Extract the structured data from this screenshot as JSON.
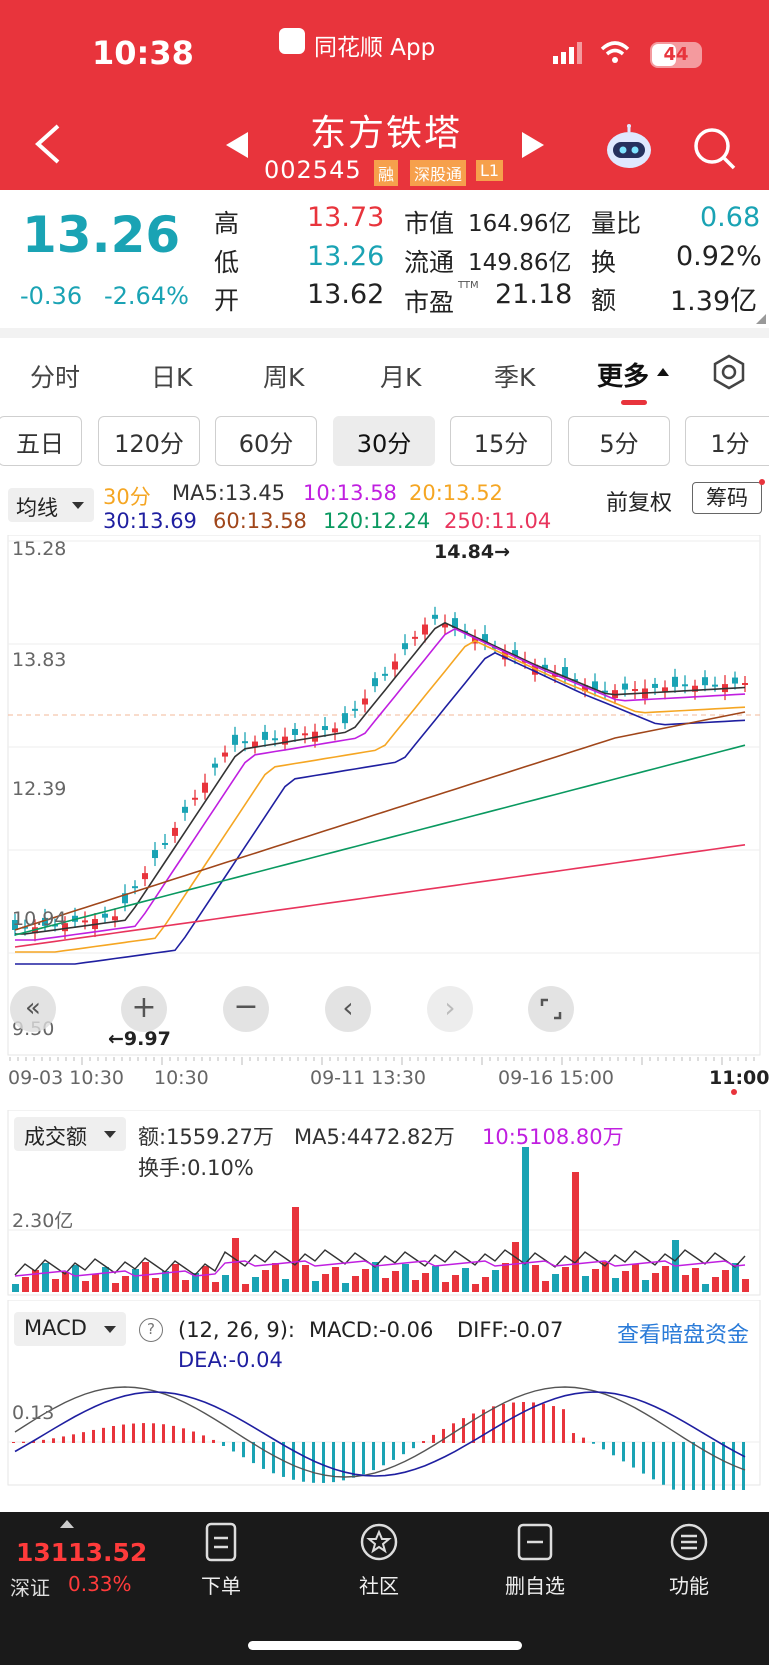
{
  "status": {
    "time": "10:38",
    "app_label": "同花顺 App",
    "battery": "44"
  },
  "header": {
    "stock_name": "东方铁塔",
    "stock_code": "002545",
    "badges": [
      "融",
      "深股通",
      "L1"
    ]
  },
  "quote": {
    "price": "13.26",
    "change": "-0.36",
    "change_pct": "-2.64%",
    "rows": [
      {
        "l1": "高",
        "v1": "13.73",
        "l2": "市值",
        "v2": "164.96亿",
        "l3": "量比",
        "v3": "0.68"
      },
      {
        "l1": "低",
        "v1": "13.26",
        "l2": "流通",
        "v2": "149.86亿",
        "l3": "换",
        "v3": "0.92%"
      },
      {
        "l1": "开",
        "v1": "13.62",
        "l2": "市盈",
        "v2": "21.18",
        "l3": "额",
        "v3": "1.39亿"
      }
    ],
    "ttm": "TTM"
  },
  "tabs": [
    "分时",
    "日K",
    "周K",
    "月K",
    "季K",
    "更多"
  ],
  "periods": [
    "五日",
    "120分",
    "60分",
    "30分",
    "15分",
    "5分",
    "1分"
  ],
  "ma": {
    "selector": "均线",
    "ma30": "30分",
    "ma5": "MA5:13.45",
    "ma10": "10:13.58",
    "ma20": "20:13.52",
    "ma30v": "30:13.69",
    "ma60": "60:13.58",
    "ma120": "120:12.24",
    "ma250": "250:11.04",
    "fq": "前复权",
    "chip": "筹码"
  },
  "kline": {
    "yticks": [
      "15.28",
      "13.83",
      "12.39",
      "10.94",
      "9.50"
    ],
    "high_label": "14.84→",
    "low_label": "←9.97",
    "xticks": [
      "09-03 10:30",
      "10:30",
      "09-11 13:30",
      "09-16 15:00",
      "11:00"
    ]
  },
  "volume": {
    "selector": "成交额",
    "amount": "额:1559.27万",
    "ma5": "MA5:4472.82万",
    "ma10": "10:5108.80万",
    "turnover": "换手:0.10%",
    "ytick": "2.30亿"
  },
  "macd": {
    "selector": "MACD",
    "params": "(12, 26, 9):",
    "macd": "MACD:-0.06",
    "diff": "DIFF:-0.07",
    "dea": "DEA:-0.04",
    "link": "查看暗盘资金",
    "ytick": "0.13"
  },
  "index": {
    "value": "13113.52",
    "name": "深证",
    "pct": "0.33%"
  },
  "nav": [
    "下单",
    "社区",
    "删自选",
    "功能"
  ],
  "colors": {
    "up": "#e8343c",
    "down": "#1aa3b4",
    "brand": "#e8343c"
  }
}
